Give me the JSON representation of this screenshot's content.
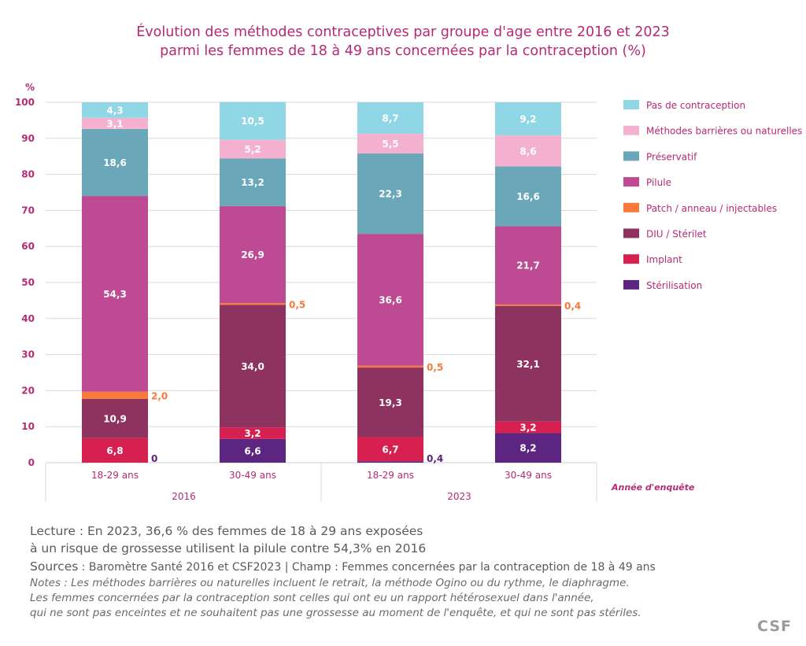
{
  "title": {
    "line1": "Évolution des méthodes contraceptives par groupe d'age entre 2016 et 2023",
    "line2": "parmi les femmes de 18 à 49 ans concernées par la contraception (%)"
  },
  "colors": {
    "title": "#b52a74",
    "axis_text": "#b52a74",
    "grid": "#d9d9d9"
  },
  "chart_data": {
    "type": "bar",
    "stacked": true,
    "title": "Évolution des méthodes contraceptives par groupe d'age entre 2016 et 2023 parmi les femmes de 18 à 49 ans concernées par la contraception (%)",
    "ylabel": "%",
    "xlabel": "Année d'enquête",
    "ylim": [
      0,
      100
    ],
    "yticks": [
      0,
      10,
      20,
      30,
      40,
      50,
      60,
      70,
      80,
      90,
      100
    ],
    "grid": true,
    "legend_position": "right",
    "categories": [
      "18-29 ans",
      "30-49 ans",
      "18-29 ans",
      "30-49 ans"
    ],
    "groups": [
      {
        "label": "2016",
        "categories": [
          0,
          1
        ]
      },
      {
        "label": "2023",
        "categories": [
          2,
          3
        ]
      }
    ],
    "series": [
      {
        "name": "Stérilisation",
        "color": "#5c2580",
        "labels": [
          "0",
          "6,6",
          "0,4",
          "8,2"
        ],
        "values": [
          0,
          6.6,
          0.4,
          8.2
        ],
        "outside": [
          true,
          false,
          true,
          false
        ]
      },
      {
        "name": "Implant",
        "color": "#d6204f",
        "labels": [
          "6,8",
          "3,2",
          "6,7",
          "3,2"
        ],
        "values": [
          6.8,
          3.2,
          6.7,
          3.2
        ],
        "outside": [
          false,
          false,
          false,
          false
        ]
      },
      {
        "name": "DIU / Stérilet",
        "color": "#8e325f",
        "labels": [
          "10,9",
          "34,0",
          "19,3",
          "32,1"
        ],
        "values": [
          10.9,
          34.0,
          19.3,
          32.1
        ],
        "outside": [
          false,
          false,
          false,
          false
        ]
      },
      {
        "name": "Patch / anneau / injectables",
        "color": "#f77a3a",
        "labels": [
          "2,0",
          "0,5",
          "0,5",
          "0,4"
        ],
        "values": [
          2.0,
          0.5,
          0.5,
          0.4
        ],
        "outside": [
          true,
          true,
          true,
          true
        ]
      },
      {
        "name": "Pilule",
        "color": "#bd4a92",
        "labels": [
          "54,3",
          "26,9",
          "36,6",
          "21,7"
        ],
        "values": [
          54.3,
          26.9,
          36.6,
          21.7
        ],
        "outside": [
          false,
          false,
          false,
          false
        ]
      },
      {
        "name": "Préservatif",
        "color": "#6aa8b9",
        "labels": [
          "18,6",
          "13,2",
          "22,3",
          "16,6"
        ],
        "values": [
          18.6,
          13.2,
          22.3,
          16.6
        ],
        "outside": [
          false,
          false,
          false,
          false
        ]
      },
      {
        "name": "Méthodes barrières ou naturelles",
        "color": "#f4b1cf",
        "labels": [
          "3,1",
          "5,2",
          "5,5",
          "8,6"
        ],
        "values": [
          3.1,
          5.2,
          5.5,
          8.6
        ],
        "outside": [
          false,
          false,
          false,
          false
        ]
      },
      {
        "name": "Pas de contraception",
        "color": "#90d6e4",
        "labels": [
          "4,3",
          "10,5",
          "8,7",
          "9,2"
        ],
        "values": [
          4.3,
          10.5,
          8.7,
          9.2
        ],
        "outside": [
          false,
          false,
          false,
          false
        ]
      }
    ],
    "legend_order": [
      "Pas de contraception",
      "Méthodes barrières ou naturelles",
      "Préservatif",
      "Pilule",
      "Patch / anneau / injectables",
      "DIU / Stérilet",
      "Implant",
      "Stérilisation"
    ]
  },
  "footer": {
    "lecture1": "Lecture : En 2023, 36,6 % des femmes de 18 à 29 ans exposées",
    "lecture2": "à un risque de grossesse utilisent la pilule contre 54,3%  en 2016",
    "sources_label": "Sources",
    "sources_text": " : Baromètre Santé 2016 et CSF2023  |  Champ : Femmes concernées par la contraception de 18 à 49 ans",
    "note1": "Notes : Les méthodes barrières ou naturelles incluent  le retrait,  la méthode Ogino ou du rythme,  le diaphragme.",
    "note2": "Les femmes  concernées par la contraception sont celles qui ont eu un rapport hétérosexuel  dans l'année,",
    "note3": "qui ne sont pas enceintes  et ne souhaitent  pas une grossesse  au moment  de l'enquête,  et qui ne sont pas stériles."
  },
  "logo": "CSF"
}
